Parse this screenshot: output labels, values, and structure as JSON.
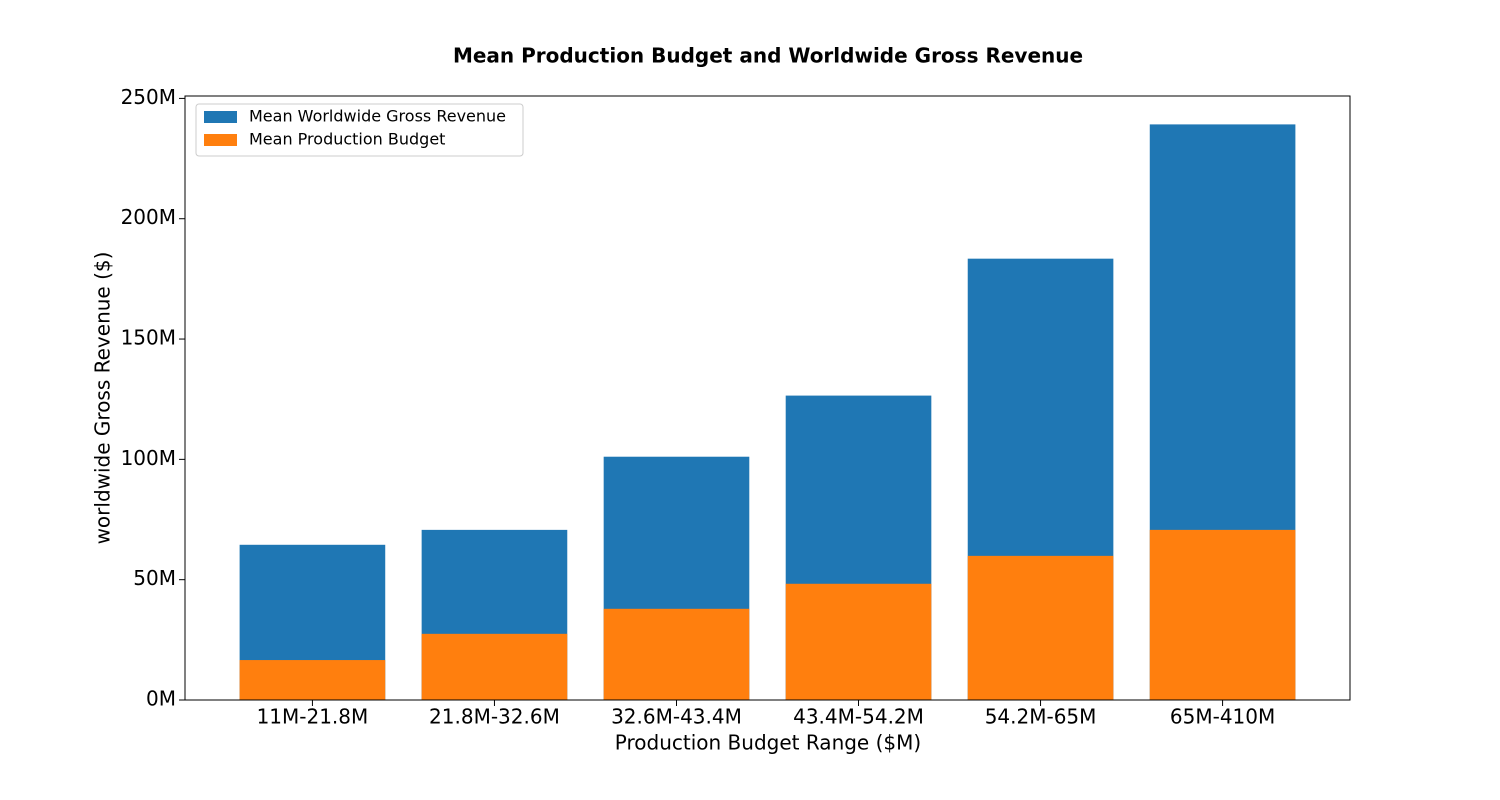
{
  "chart_data": {
    "type": "bar",
    "title": "Mean Production Budget and Worldwide Gross Revenue",
    "x_label": "Production Budget Range ($M)",
    "y_label": "worldwide Gross Revenue ($)",
    "categories": [
      "11M-21.8M",
      "21.8M-32.6M",
      "32.6M-43.4M",
      "43.4M-54.2M",
      "54.2M-65M",
      "65M-410M"
    ],
    "series": [
      {
        "name": "Mean Worldwide Gross Revenue",
        "color": "#1f77b4",
        "values": [
          64500000,
          70700000,
          101100000,
          126500000,
          183400000,
          239200000
        ]
      },
      {
        "name": "Mean Production Budget",
        "color": "#ff7f0e",
        "values": [
          16600000,
          27500000,
          37900000,
          48300000,
          59900000,
          70700000
        ]
      }
    ],
    "ylim": [
      0,
      251000000
    ],
    "yticks": [
      {
        "value": 0,
        "label": "0M"
      },
      {
        "value": 50000000,
        "label": "50M"
      },
      {
        "value": 100000000,
        "label": "100M"
      },
      {
        "value": 150000000,
        "label": "150M"
      },
      {
        "value": 200000000,
        "label": "200M"
      },
      {
        "value": 250000000,
        "label": "250M"
      }
    ],
    "grid": false,
    "legend": "upper-left"
  }
}
